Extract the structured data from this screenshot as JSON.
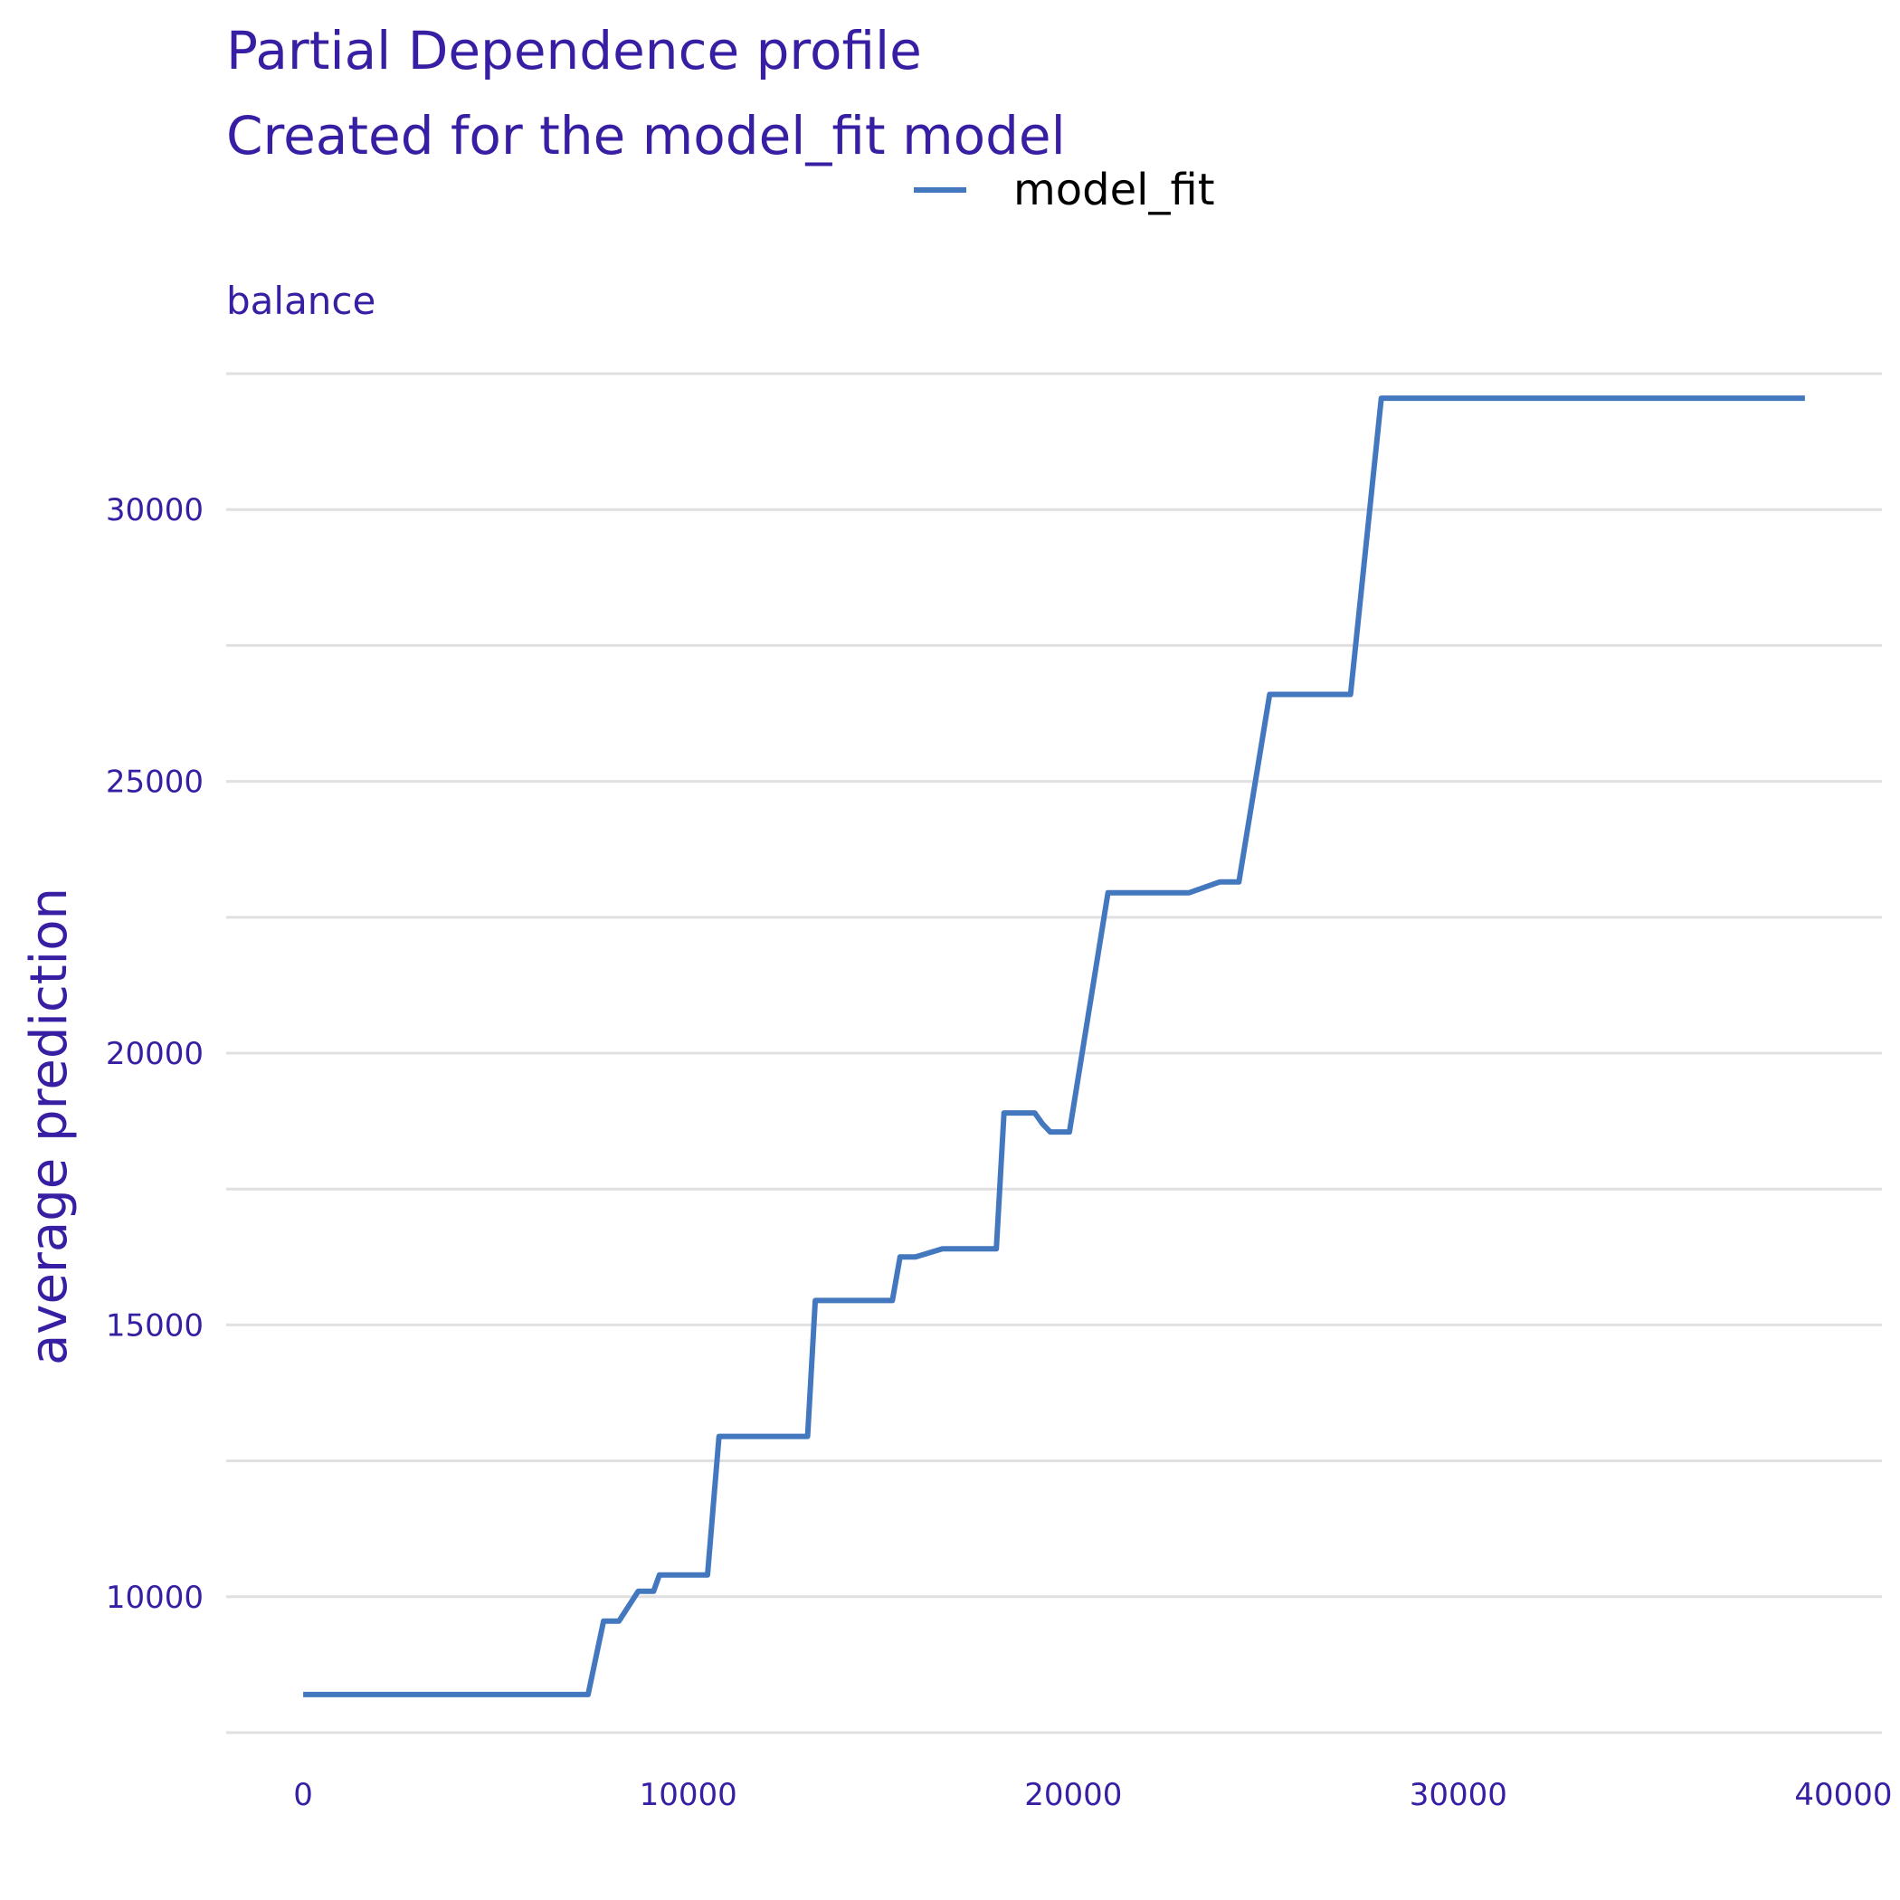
{
  "chart_data": {
    "type": "line",
    "title": "Partial Dependence profile",
    "subtitle": "Created for the model_fit model",
    "facet_label": "balance",
    "ylabel": "average prediction",
    "xlabel": "",
    "xlim": [
      -2000,
      41000
    ],
    "ylim": [
      7500,
      32800
    ],
    "x_ticks": [
      0,
      10000,
      20000,
      30000,
      40000
    ],
    "x_tick_labels": [
      "0",
      "10000",
      "20000",
      "30000",
      "40000"
    ],
    "y_ticks": [
      10000,
      15000,
      20000,
      25000,
      30000
    ],
    "y_tick_labels": [
      "10000",
      "15000",
      "20000",
      "25000",
      "30000"
    ],
    "y_grid_minor": [
      7500,
      12500,
      17500,
      22500,
      27500,
      32500
    ],
    "grid": true,
    "legend": {
      "position": "top",
      "entries": [
        "model_fit"
      ]
    },
    "colors": {
      "text": "#371ea3",
      "line": "#4378bf",
      "grid": "#e0e0e0"
    },
    "series": [
      {
        "name": "model_fit",
        "x": [
          0,
          7400,
          7800,
          8200,
          8700,
          9100,
          9250,
          10500,
          10800,
          13100,
          13300,
          15300,
          15500,
          15900,
          16600,
          18000,
          18200,
          19000,
          19200,
          19400,
          19900,
          20900,
          23000,
          23800,
          24300,
          25100,
          27200,
          28000,
          39000
        ],
        "y": [
          8200,
          8200,
          9550,
          9550,
          10100,
          10100,
          10400,
          10400,
          12950,
          12950,
          15450,
          15450,
          16250,
          16250,
          16400,
          16400,
          18900,
          18900,
          18700,
          18550,
          18550,
          22950,
          22950,
          23150,
          23150,
          26600,
          26600,
          32050,
          32050
        ]
      }
    ]
  }
}
